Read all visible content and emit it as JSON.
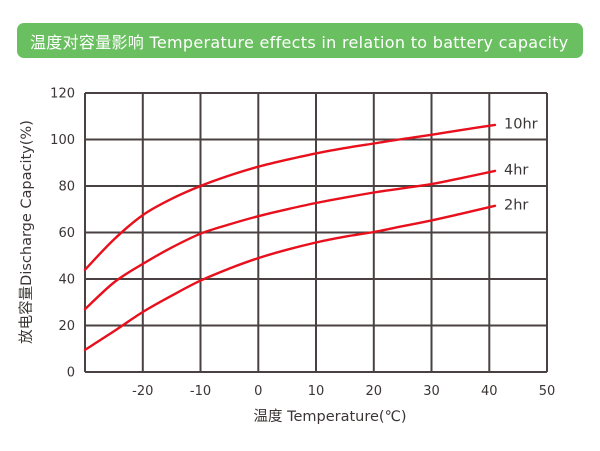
{
  "banner": {
    "title": "温度对容量影响 Temperature effects in relation to battery capacity",
    "bg_color": "#6abf61",
    "text_color": "#ffffff"
  },
  "chart_data": {
    "type": "line",
    "title": "",
    "xlabel": "温度 Temperature(℃)",
    "ylabel": "放电容量Discharge Capacity(%)",
    "xlim": [
      -30,
      50
    ],
    "ylim": [
      0,
      120
    ],
    "x_grid_step": 10,
    "y_grid_step": 20,
    "x_ticks": [
      -20,
      -10,
      0,
      10,
      20,
      30,
      40,
      50
    ],
    "y_ticks": [
      0,
      20,
      40,
      60,
      80,
      100,
      120
    ],
    "grid": true,
    "legend_position": "right-inside",
    "line_color": "#e8101c",
    "grid_color": "#4a4242",
    "series": [
      {
        "name": "10hr",
        "x": [
          -30,
          -25,
          -20,
          -15,
          -10,
          -5,
          0,
          5,
          10,
          15,
          20,
          25,
          30,
          35,
          41
        ],
        "values": [
          44,
          57,
          67.5,
          74.5,
          80,
          84.5,
          88.3,
          91.3,
          94,
          96.3,
          98.3,
          100.2,
          102,
          104,
          106.3
        ]
      },
      {
        "name": "4hr",
        "x": [
          -30,
          -25,
          -20,
          -15,
          -10,
          -5,
          0,
          5,
          10,
          15,
          20,
          25,
          30,
          35,
          41
        ],
        "values": [
          27,
          38.5,
          46.5,
          53.5,
          59.5,
          63.5,
          67,
          70,
          72.7,
          75,
          77.2,
          79,
          80.8,
          83.3,
          86.5
        ]
      },
      {
        "name": "2hr",
        "x": [
          -30,
          -25,
          -20,
          -15,
          -10,
          -5,
          0,
          5,
          10,
          15,
          20,
          25,
          30,
          35,
          41
        ],
        "values": [
          9.5,
          17.5,
          25.8,
          32.8,
          39.3,
          44.5,
          49,
          52.6,
          55.7,
          58.2,
          60.2,
          62.7,
          65.2,
          68,
          71.5
        ]
      }
    ]
  }
}
